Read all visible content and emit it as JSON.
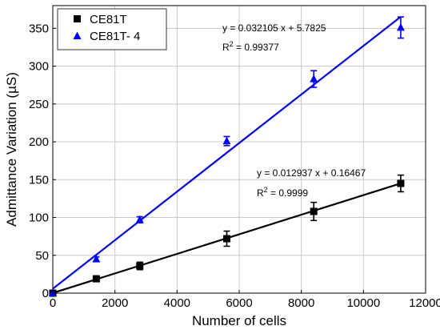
{
  "chart_data": {
    "type": "scatter",
    "title": "",
    "xlabel": "Number of cells",
    "ylabel": "Admittance Variation (µS)",
    "xlim": [
      0,
      12000
    ],
    "ylim": [
      0,
      380
    ],
    "xticks": [
      0,
      2000,
      4000,
      6000,
      8000,
      10000,
      12000
    ],
    "yticks": [
      0,
      50,
      100,
      150,
      200,
      250,
      300,
      350
    ],
    "grid": true,
    "legend_position": "top-left",
    "series": [
      {
        "name": "CE81T",
        "color": "#000000",
        "marker": "square",
        "x": [
          0,
          1400,
          2800,
          5600,
          8400,
          11200
        ],
        "y": [
          0,
          19,
          36,
          72,
          108,
          145
        ],
        "err": [
          1,
          3,
          5,
          10,
          12,
          11
        ],
        "fit": {
          "slope": 0.012937,
          "intercept": 0.16467,
          "equation": "y = 0.012937 x + 0.16467",
          "r2_prefix": "R",
          "r2_sup": "2",
          "r2_value": " = 0.9999"
        }
      },
      {
        "name": "CE81T- 4",
        "color": "#0000ff",
        "marker": "triangle",
        "x": [
          0,
          1400,
          2800,
          5600,
          8400,
          11200
        ],
        "y": [
          0,
          45,
          97,
          201,
          283,
          351
        ],
        "err": [
          1,
          3,
          4,
          6,
          11,
          14
        ],
        "fit": {
          "slope": 0.032105,
          "intercept": 5.7825,
          "equation": "y = 0.032105 x + 5.7825",
          "r2_prefix": "R",
          "r2_sup": "2",
          "r2_value": " = 0.99377"
        }
      }
    ]
  }
}
